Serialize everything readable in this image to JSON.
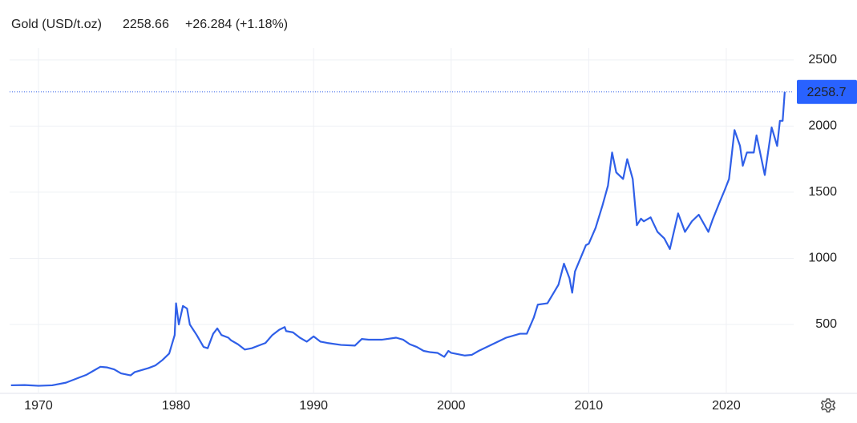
{
  "chart_data": {
    "type": "line",
    "title": "Gold (USD/t.oz)",
    "price": "2258.66",
    "change": "+26.284 (+1.18%)",
    "price_color": "#3d5fd9",
    "change_color": "#43a047",
    "color": "#2f5fe8",
    "grid": true,
    "last_price": {
      "value": 2258.66,
      "label": "2258.7"
    },
    "xlim": [
      1967.9,
      2024.9
    ],
    "ylim": [
      -15,
      2590
    ],
    "xticks": [
      1970,
      1980,
      1990,
      2000,
      2010,
      2020
    ],
    "yticks": [
      500,
      1000,
      1500,
      2000,
      2500
    ],
    "x": [
      1968,
      1969,
      1970,
      1971,
      1972,
      1973,
      1973.5,
      1974,
      1974.5,
      1975,
      1975.5,
      1976,
      1976.7,
      1977,
      1978,
      1978.5,
      1979,
      1979.5,
      1979.9,
      1980.0,
      1980.2,
      1980.5,
      1980.8,
      1981,
      1981.5,
      1982,
      1982.3,
      1982.7,
      1983,
      1983.3,
      1983.8,
      1984,
      1984.5,
      1985,
      1985.5,
      1986,
      1986.5,
      1987,
      1987.5,
      1987.9,
      1988,
      1988.5,
      1989,
      1989.5,
      1990,
      1990.5,
      1991,
      1992,
      1993,
      1993.5,
      1994,
      1995,
      1996,
      1996.5,
      1997,
      1997.5,
      1998,
      1998.5,
      1999,
      1999.5,
      1999.8,
      2000,
      2001,
      2001.5,
      2002,
      2003,
      2004,
      2005,
      2005.5,
      2006,
      2006.3,
      2007,
      2007.8,
      2008.2,
      2008.6,
      2008.8,
      2009,
      2009.8,
      2010,
      2010.5,
      2011,
      2011.4,
      2011.7,
      2012,
      2012.5,
      2012.8,
      2013.2,
      2013.5,
      2013.8,
      2014,
      2014.5,
      2015,
      2015.5,
      2015.9,
      2016.5,
      2017,
      2017.5,
      2018,
      2018.7,
      2019,
      2019.5,
      2019.9,
      2020.2,
      2020.6,
      2021,
      2021.2,
      2021.5,
      2022,
      2022.2,
      2022.8,
      2023.3,
      2023.7,
      2023.9,
      2024.1,
      2024.25
    ],
    "values": [
      40,
      42,
      36,
      40,
      60,
      100,
      120,
      150,
      180,
      175,
      160,
      130,
      115,
      140,
      170,
      190,
      230,
      280,
      420,
      660,
      500,
      640,
      620,
      500,
      420,
      330,
      320,
      430,
      470,
      420,
      400,
      380,
      350,
      310,
      320,
      340,
      360,
      420,
      460,
      480,
      450,
      440,
      400,
      370,
      410,
      370,
      360,
      345,
      340,
      390,
      385,
      385,
      400,
      385,
      350,
      330,
      300,
      290,
      285,
      255,
      300,
      285,
      265,
      270,
      300,
      350,
      400,
      430,
      430,
      550,
      650,
      660,
      800,
      960,
      850,
      740,
      900,
      1100,
      1110,
      1230,
      1400,
      1550,
      1800,
      1650,
      1600,
      1750,
      1600,
      1250,
      1300,
      1280,
      1310,
      1200,
      1150,
      1070,
      1340,
      1200,
      1280,
      1330,
      1200,
      1290,
      1420,
      1520,
      1600,
      1970,
      1850,
      1700,
      1800,
      1800,
      1930,
      1630,
      1990,
      1850,
      2040,
      2040,
      2258.66
    ]
  }
}
